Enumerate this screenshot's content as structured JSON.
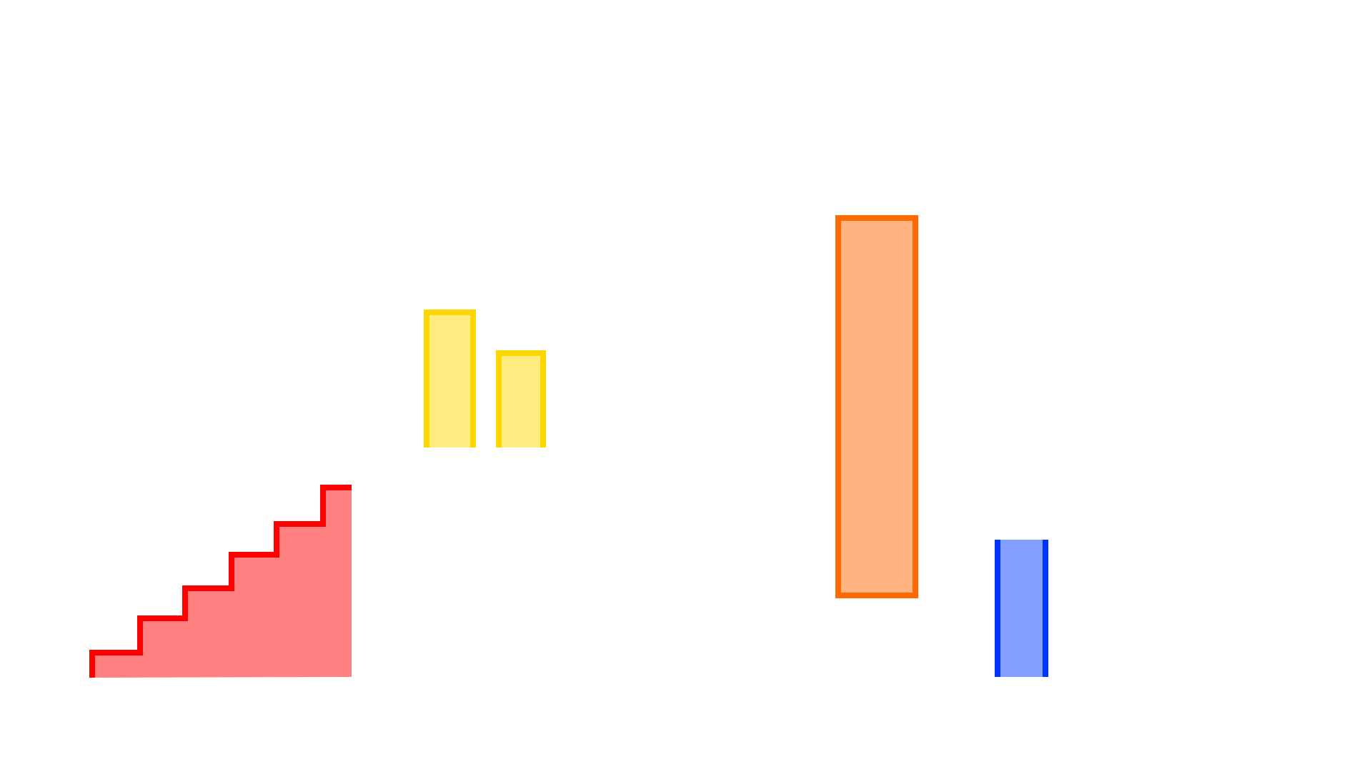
{
  "shapes": [
    {
      "name": "red-staircase",
      "kind": "staircase",
      "stroke": "#ff0000",
      "fill": "#ff8080",
      "steps": 6
    },
    {
      "name": "yellow-bar-tall",
      "kind": "open-top-bar",
      "stroke": "#ffd700",
      "fill": "#ffeb80"
    },
    {
      "name": "yellow-bar-short",
      "kind": "open-top-bar",
      "stroke": "#ffd700",
      "fill": "#ffeb80"
    },
    {
      "name": "orange-rectangle",
      "kind": "rectangle",
      "stroke": "#ff6a00",
      "fill": "#ffb380"
    },
    {
      "name": "blue-bar",
      "kind": "side-lined-bar",
      "stroke": "#0033ff",
      "fill": "#809fff"
    }
  ]
}
